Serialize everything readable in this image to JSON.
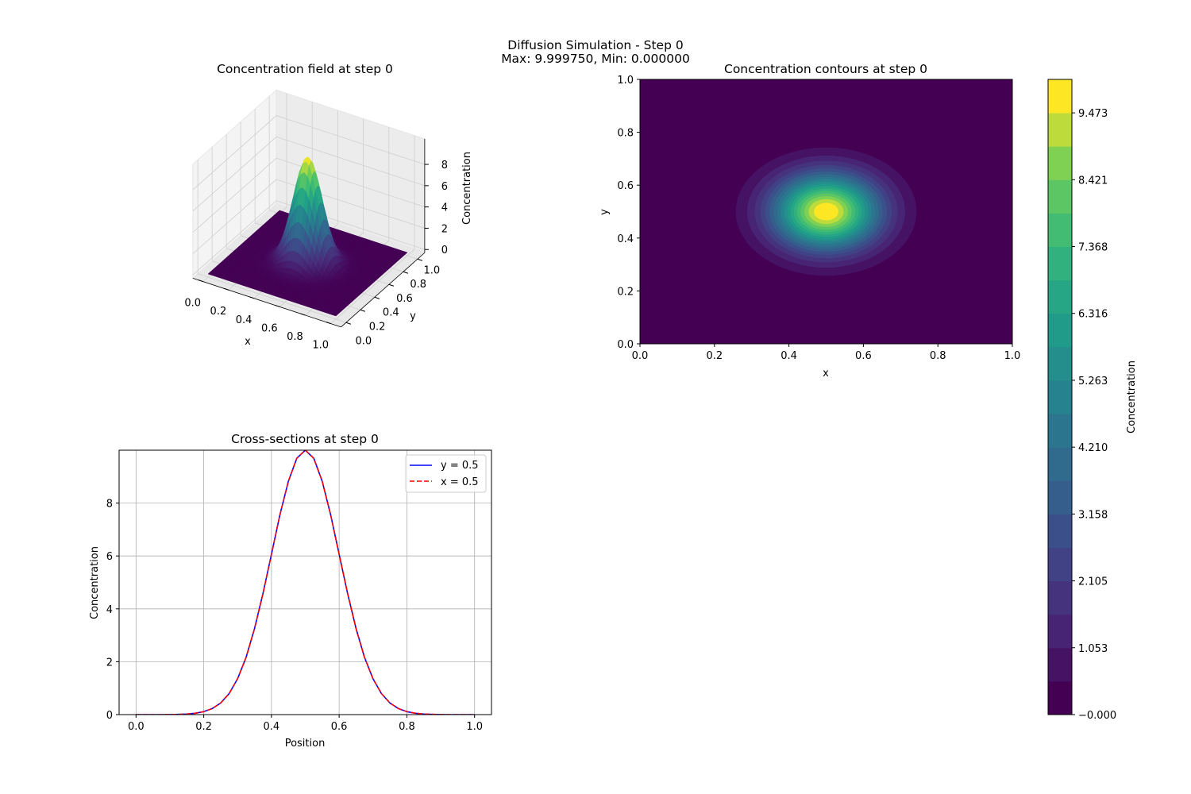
{
  "suptitle": {
    "line1": "Diffusion Simulation - Step 0",
    "line2": "Max: 9.999750, Min: 0.000000"
  },
  "colors": {
    "y_section": "#0000ff",
    "x_section": "#ff0000",
    "grid": "#b0b0b0"
  },
  "chart_data": [
    {
      "type": "surface3d",
      "title": "Concentration field at step 0",
      "xlabel": "x",
      "ylabel": "y",
      "zlabel": "Concentration",
      "xlim": [
        0,
        1
      ],
      "ylim": [
        0,
        1
      ],
      "zlim": [
        0,
        10
      ],
      "xticks": [
        "0.0",
        "0.2",
        "0.4",
        "0.6",
        "0.8",
        "1.0"
      ],
      "yticks": [
        "0.0",
        "0.2",
        "0.4",
        "0.6",
        "0.8",
        "1.0"
      ],
      "zticks": [
        "0",
        "2",
        "4",
        "6",
        "8"
      ],
      "colormap": "viridis",
      "field": {
        "kind": "gaussian",
        "peak": 9.99975,
        "center": [
          0.5,
          0.5
        ],
        "sigma": 0.1
      }
    },
    {
      "type": "contourf",
      "title": "Concentration contours at step 0",
      "xlabel": "x",
      "ylabel": "y",
      "xlim": [
        0,
        1
      ],
      "ylim": [
        0,
        1
      ],
      "xticks": [
        "0.0",
        "0.2",
        "0.4",
        "0.6",
        "0.8",
        "1.0"
      ],
      "yticks": [
        "0.0",
        "0.2",
        "0.4",
        "0.6",
        "0.8",
        "1.0"
      ],
      "levels": {
        "min": 0,
        "max": 9.99975,
        "count": 20
      },
      "colormap": "viridis",
      "colorbar": {
        "label": "Concentration",
        "ticks": [
          "−0.000",
          "1.053",
          "2.105",
          "3.158",
          "4.210",
          "5.263",
          "6.316",
          "7.368",
          "8.421",
          "9.473"
        ],
        "tick_values": [
          0,
          1.053,
          2.105,
          3.158,
          4.21,
          5.263,
          6.316,
          7.368,
          8.421,
          9.473
        ]
      }
    },
    {
      "type": "line",
      "title": "Cross-sections at step 0",
      "xlabel": "Position",
      "ylabel": "Concentration",
      "xlim": [
        -0.05,
        1.05
      ],
      "ylim": [
        0,
        9.99975
      ],
      "xticks": [
        "0.0",
        "0.2",
        "0.4",
        "0.6",
        "0.8",
        "1.0"
      ],
      "yticks": [
        "0",
        "2",
        "4",
        "6",
        "8"
      ],
      "grid": true,
      "legend": "top-right",
      "x": [
        0,
        0.025,
        0.05,
        0.075,
        0.1,
        0.125,
        0.15,
        0.175,
        0.2,
        0.225,
        0.25,
        0.275,
        0.3,
        0.325,
        0.35,
        0.375,
        0.4,
        0.425,
        0.45,
        0.475,
        0.5,
        0.525,
        0.55,
        0.575,
        0.6,
        0.625,
        0.65,
        0.675,
        0.7,
        0.725,
        0.75,
        0.775,
        0.8,
        0.825,
        0.85,
        0.875,
        0.9,
        0.925,
        0.95,
        0.975,
        1.0
      ],
      "series": [
        {
          "name": "y = 0.5",
          "style": "solid",
          "values": [
            0,
            0,
            0,
            0.001,
            0.003,
            0.009,
            0.022,
            0.051,
            0.111,
            0.228,
            0.439,
            0.796,
            1.353,
            2.163,
            3.247,
            4.578,
            6.065,
            7.548,
            8.825,
            9.692,
            9.9998,
            9.692,
            8.825,
            7.548,
            6.065,
            4.578,
            3.247,
            2.163,
            1.353,
            0.796,
            0.439,
            0.228,
            0.111,
            0.051,
            0.022,
            0.009,
            0.003,
            0.001,
            0,
            0,
            0
          ]
        },
        {
          "name": "x = 0.5",
          "style": "dashed",
          "values": [
            0,
            0,
            0,
            0.001,
            0.003,
            0.009,
            0.022,
            0.051,
            0.111,
            0.228,
            0.439,
            0.796,
            1.353,
            2.163,
            3.247,
            4.578,
            6.065,
            7.548,
            8.825,
            9.692,
            9.9998,
            9.692,
            8.825,
            7.548,
            6.065,
            4.578,
            3.247,
            2.163,
            1.353,
            0.796,
            0.439,
            0.228,
            0.111,
            0.051,
            0.022,
            0.009,
            0.003,
            0.001,
            0,
            0,
            0
          ]
        }
      ]
    }
  ]
}
